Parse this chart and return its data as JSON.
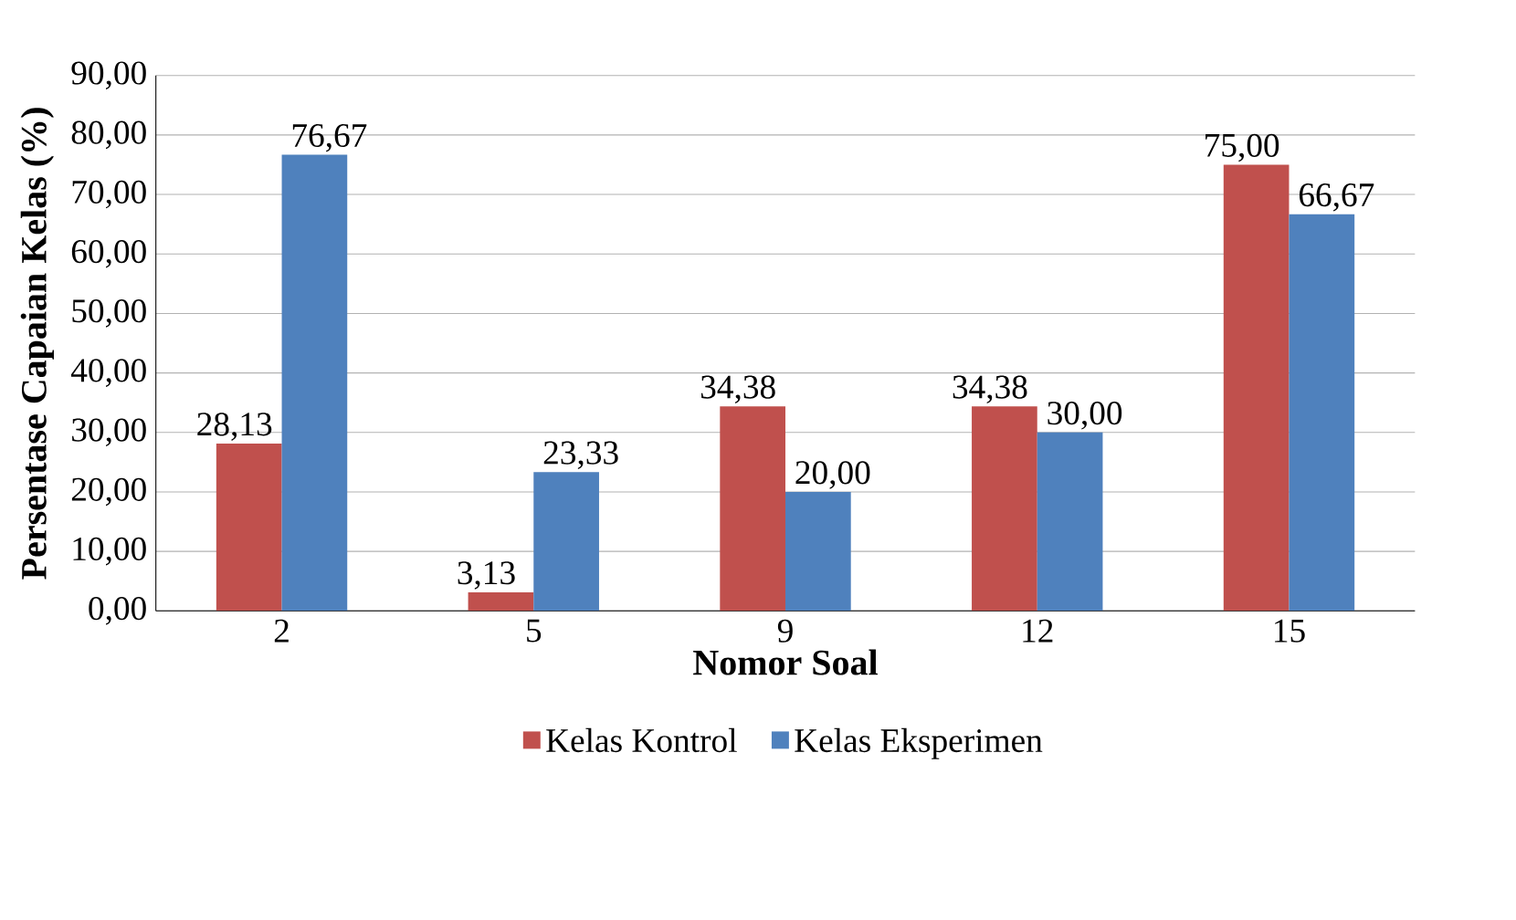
{
  "chart_data": {
    "type": "bar",
    "xlabel": "Nomor Soal",
    "ylabel": "Persentase Capaian Kelas (%)",
    "categories": [
      "2",
      "5",
      "9",
      "12",
      "15"
    ],
    "series": [
      {
        "name": "Kelas Kontrol",
        "color": "#c0504d",
        "values": [
          28.13,
          3.13,
          34.38,
          34.38,
          75.0
        ],
        "value_labels": [
          "28,13",
          "3,13",
          "34,38",
          "34,38",
          "75,00"
        ]
      },
      {
        "name": "Kelas Eksperimen",
        "color": "#4f81bd",
        "values": [
          76.67,
          23.33,
          20.0,
          30.0,
          66.67
        ],
        "value_labels": [
          "76,67",
          "23,33",
          "20,00",
          "30,00",
          "66,67"
        ]
      }
    ],
    "ylim": [
      0,
      90
    ],
    "yticks": [
      {
        "value": 0,
        "label": "0,00"
      },
      {
        "value": 10,
        "label": "10,00"
      },
      {
        "value": 20,
        "label": "20,00"
      },
      {
        "value": 30,
        "label": "30,00"
      },
      {
        "value": 40,
        "label": "40,00"
      },
      {
        "value": 50,
        "label": "50,00"
      },
      {
        "value": 60,
        "label": "60,00"
      },
      {
        "value": 70,
        "label": "70,00"
      },
      {
        "value": 80,
        "label": "80,00"
      },
      {
        "value": 90,
        "label": "90,00"
      }
    ],
    "grid": "y",
    "legend": "bottom"
  }
}
